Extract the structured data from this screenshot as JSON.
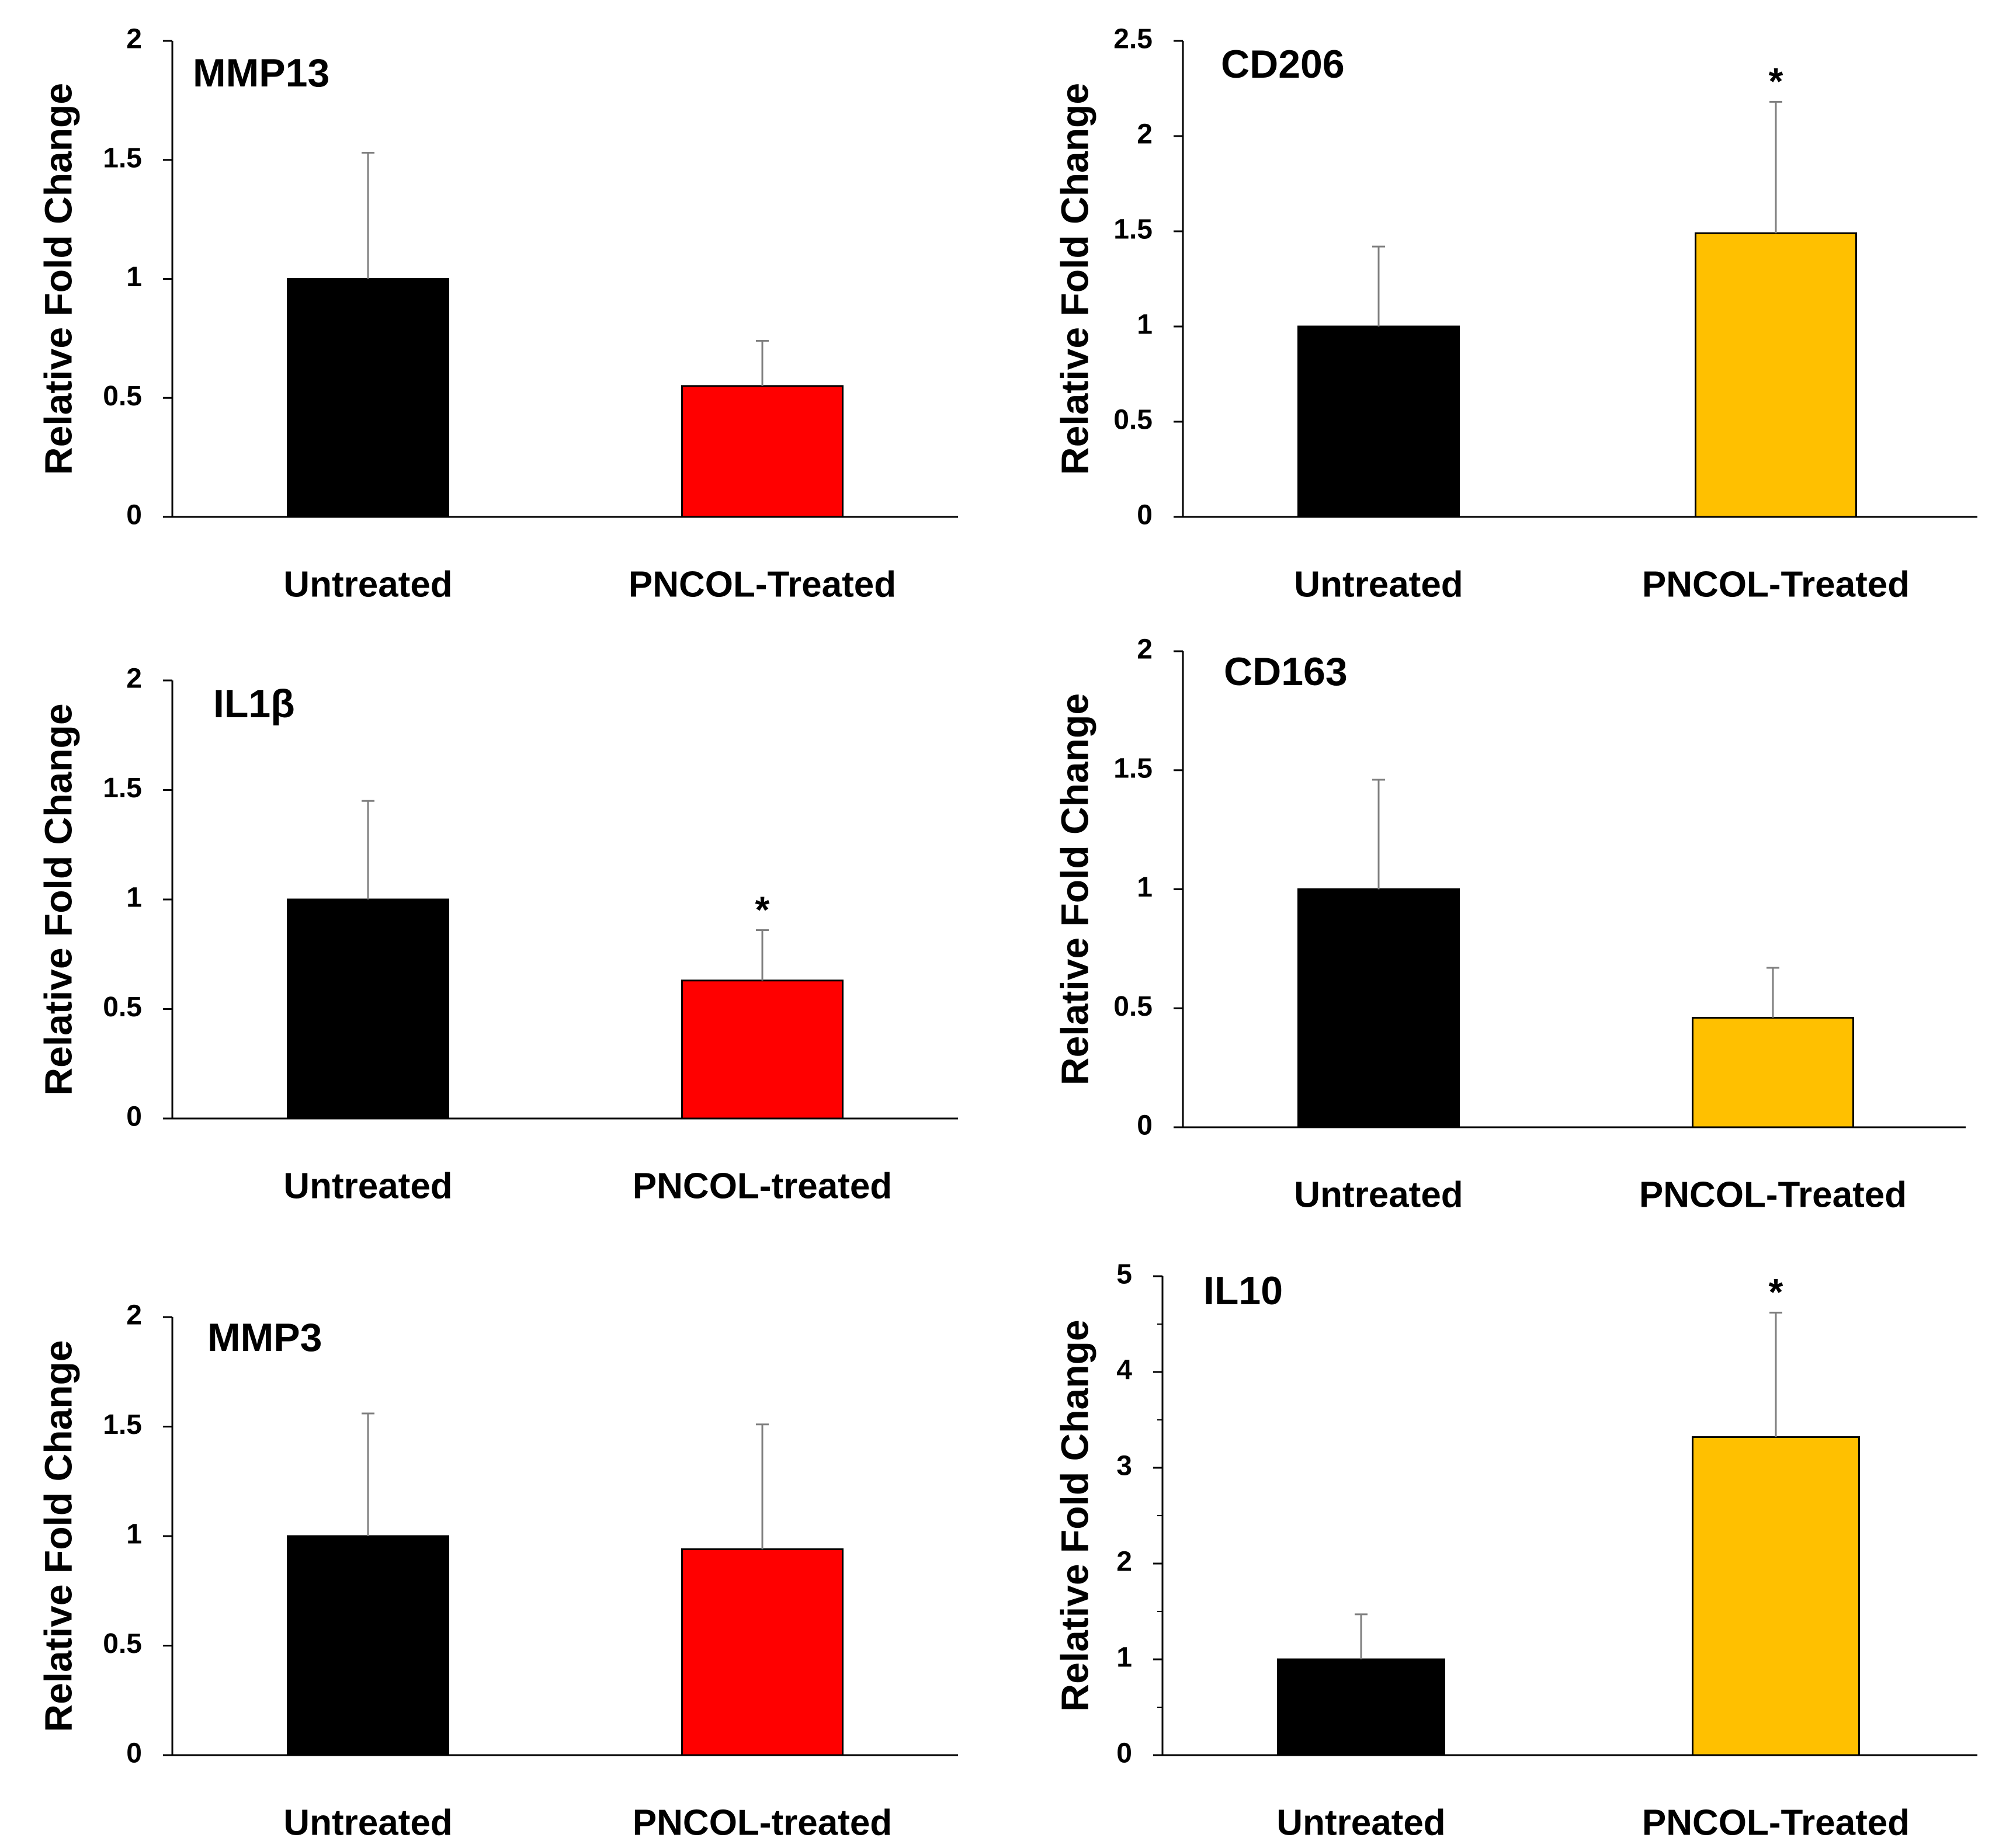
{
  "figure": {
    "colors": {
      "untreated": "#000000",
      "treated_red": "#ff0000",
      "treated_yellow": "#ffc000",
      "axis": "#000000",
      "error_bar": "#7f7f7f"
    }
  },
  "chart_data": [
    {
      "type": "bar",
      "title": "MMP13",
      "ylabel": "Relative Fold Change",
      "categories": [
        "Untreated",
        "PNCOL-Treated"
      ],
      "values": [
        1.0,
        0.55
      ],
      "errors": [
        0.53,
        0.19
      ],
      "significance": [
        "",
        ""
      ],
      "ylim": [
        0,
        2
      ],
      "yticks": [
        0,
        0.5,
        1,
        1.5,
        2
      ],
      "ytick_labels": [
        "0",
        "0.5",
        "1",
        "1.5",
        "2"
      ],
      "minor_ticks": false,
      "bar_colors": [
        "#000000",
        "#ff0000"
      ]
    },
    {
      "type": "bar",
      "title": "CD206",
      "ylabel": "Relative Fold Change",
      "categories": [
        "Untreated",
        "PNCOL-Treated"
      ],
      "values": [
        1.0,
        1.49
      ],
      "errors": [
        0.42,
        0.69
      ],
      "significance": [
        "",
        "*"
      ],
      "ylim": [
        0,
        2.5
      ],
      "yticks": [
        0,
        0.5,
        1,
        1.5,
        2,
        2.5
      ],
      "ytick_labels": [
        "0",
        "0.5",
        "1",
        "1.5",
        "2",
        "2.5"
      ],
      "minor_ticks": false,
      "bar_colors": [
        "#000000",
        "#ffc000"
      ]
    },
    {
      "type": "bar",
      "title": "IL1β",
      "ylabel": "Relative Fold Change",
      "categories": [
        "Untreated",
        "PNCOL-treated"
      ],
      "values": [
        1.0,
        0.63
      ],
      "errors": [
        0.45,
        0.23
      ],
      "significance": [
        "",
        "*"
      ],
      "ylim": [
        0,
        2
      ],
      "yticks": [
        0,
        0.5,
        1,
        1.5,
        2
      ],
      "ytick_labels": [
        "0",
        "0.5",
        "1",
        "1.5",
        "2"
      ],
      "minor_ticks": false,
      "bar_colors": [
        "#000000",
        "#ff0000"
      ]
    },
    {
      "type": "bar",
      "title": "CD163",
      "ylabel": "Relative Fold Change",
      "categories": [
        "Untreated",
        "PNCOL-Treated"
      ],
      "values": [
        1.0,
        0.46
      ],
      "errors": [
        0.46,
        0.21
      ],
      "significance": [
        "",
        ""
      ],
      "ylim": [
        0,
        2
      ],
      "yticks": [
        0,
        0.5,
        1,
        1.5,
        2
      ],
      "ytick_labels": [
        "0",
        "0.5",
        "1",
        "1.5",
        "2"
      ],
      "minor_ticks": false,
      "bar_colors": [
        "#000000",
        "#ffc000"
      ]
    },
    {
      "type": "bar",
      "title": "MMP3",
      "ylabel": "Relative Fold Change",
      "categories": [
        "Untreated",
        "PNCOL-treated"
      ],
      "values": [
        1.0,
        0.94
      ],
      "errors": [
        0.56,
        0.57
      ],
      "significance": [
        "",
        ""
      ],
      "ylim": [
        0,
        2
      ],
      "yticks": [
        0,
        0.5,
        1,
        1.5,
        2
      ],
      "ytick_labels": [
        "0",
        "0.5",
        "1",
        "1.5",
        "2"
      ],
      "minor_ticks": false,
      "bar_colors": [
        "#000000",
        "#ff0000"
      ]
    },
    {
      "type": "bar",
      "title": "IL10",
      "ylabel": "Relative Fold Change",
      "categories": [
        "Untreated",
        "PNCOL-Treated"
      ],
      "values": [
        1.0,
        3.32
      ],
      "errors": [
        0.47,
        1.3
      ],
      "significance": [
        "",
        "*"
      ],
      "ylim": [
        0,
        5
      ],
      "yticks": [
        0,
        1,
        2,
        3,
        4,
        5
      ],
      "ytick_labels": [
        "0",
        "1",
        "2",
        "3",
        "4",
        "5"
      ],
      "minor_ticks": true,
      "bar_colors": [
        "#000000",
        "#ffc000"
      ]
    }
  ]
}
